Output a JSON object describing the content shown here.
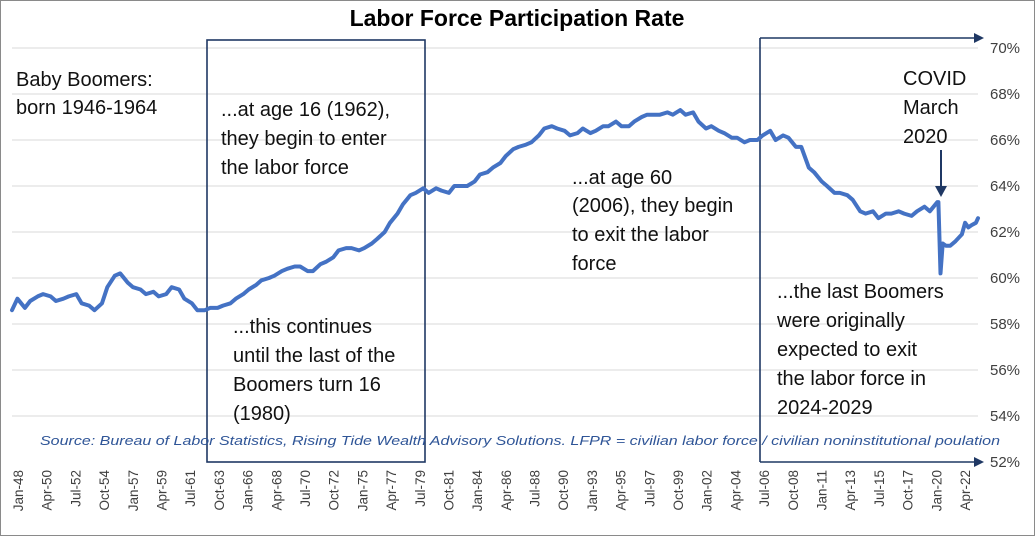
{
  "chart_data": {
    "type": "line",
    "title": "Labor Force Participation Rate",
    "ylim": [
      52,
      70
    ],
    "y_ticks": [
      "52%",
      "54%",
      "56%",
      "58%",
      "60%",
      "62%",
      "64%",
      "66%",
      "68%",
      "70%"
    ],
    "x_range": [
      "1948-01",
      "2023-03"
    ],
    "x_ticks": [
      "Jan-48",
      "Apr-50",
      "Jul-52",
      "Oct-54",
      "Jan-57",
      "Apr-59",
      "Jul-61",
      "Oct-63",
      "Jan-66",
      "Apr-68",
      "Jul-70",
      "Oct-72",
      "Jan-75",
      "Apr-77",
      "Jul-79",
      "Oct-81",
      "Jan-84",
      "Apr-86",
      "Jul-88",
      "Oct-90",
      "Jan-93",
      "Apr-95",
      "Jul-97",
      "Oct-99",
      "Jan-02",
      "Apr-04",
      "Jul-06",
      "Oct-08",
      "Jan-11",
      "Apr-13",
      "Jul-15",
      "Oct-17",
      "Jan-20",
      "Apr-22"
    ],
    "grid": true,
    "series": [
      {
        "color": "#4472c4",
        "points": [
          [
            "1948-01",
            58.6
          ],
          [
            "1948-06",
            59.1
          ],
          [
            "1949-01",
            58.7
          ],
          [
            "1949-06",
            59.0
          ],
          [
            "1950-01",
            59.2
          ],
          [
            "1950-06",
            59.3
          ],
          [
            "1951-01",
            59.2
          ],
          [
            "1951-06",
            59.0
          ],
          [
            "1952-01",
            59.1
          ],
          [
            "1952-06",
            59.2
          ],
          [
            "1953-01",
            59.3
          ],
          [
            "1953-06",
            58.9
          ],
          [
            "1954-01",
            58.8
          ],
          [
            "1954-06",
            58.6
          ],
          [
            "1955-01",
            58.9
          ],
          [
            "1955-06",
            59.6
          ],
          [
            "1956-01",
            60.1
          ],
          [
            "1956-06",
            60.2
          ],
          [
            "1957-01",
            59.8
          ],
          [
            "1957-06",
            59.6
          ],
          [
            "1958-01",
            59.5
          ],
          [
            "1958-06",
            59.3
          ],
          [
            "1959-01",
            59.4
          ],
          [
            "1959-06",
            59.2
          ],
          [
            "1960-01",
            59.3
          ],
          [
            "1960-06",
            59.6
          ],
          [
            "1961-01",
            59.5
          ],
          [
            "1961-06",
            59.1
          ],
          [
            "1962-01",
            58.9
          ],
          [
            "1962-06",
            58.6
          ],
          [
            "1963-01",
            58.6
          ],
          [
            "1963-06",
            58.7
          ],
          [
            "1964-01",
            58.7
          ],
          [
            "1964-06",
            58.8
          ],
          [
            "1965-01",
            58.9
          ],
          [
            "1965-06",
            59.1
          ],
          [
            "1966-01",
            59.3
          ],
          [
            "1966-06",
            59.5
          ],
          [
            "1967-01",
            59.7
          ],
          [
            "1967-06",
            59.9
          ],
          [
            "1968-01",
            60.0
          ],
          [
            "1968-06",
            60.1
          ],
          [
            "1969-01",
            60.3
          ],
          [
            "1969-06",
            60.4
          ],
          [
            "1970-01",
            60.5
          ],
          [
            "1970-06",
            60.5
          ],
          [
            "1971-01",
            60.3
          ],
          [
            "1971-06",
            60.3
          ],
          [
            "1972-01",
            60.6
          ],
          [
            "1972-06",
            60.7
          ],
          [
            "1973-01",
            60.9
          ],
          [
            "1973-06",
            61.2
          ],
          [
            "1974-01",
            61.3
          ],
          [
            "1974-06",
            61.3
          ],
          [
            "1975-01",
            61.2
          ],
          [
            "1975-06",
            61.3
          ],
          [
            "1976-01",
            61.5
          ],
          [
            "1976-06",
            61.7
          ],
          [
            "1977-01",
            62.0
          ],
          [
            "1977-06",
            62.4
          ],
          [
            "1978-01",
            62.8
          ],
          [
            "1978-06",
            63.2
          ],
          [
            "1979-01",
            63.6
          ],
          [
            "1979-06",
            63.7
          ],
          [
            "1980-01",
            63.9
          ],
          [
            "1980-06",
            63.7
          ],
          [
            "1981-01",
            63.9
          ],
          [
            "1981-06",
            63.8
          ],
          [
            "1982-01",
            63.7
          ],
          [
            "1982-06",
            64.0
          ],
          [
            "1983-01",
            64.0
          ],
          [
            "1983-06",
            64.0
          ],
          [
            "1984-01",
            64.2
          ],
          [
            "1984-06",
            64.5
          ],
          [
            "1985-01",
            64.6
          ],
          [
            "1985-06",
            64.8
          ],
          [
            "1986-01",
            65.0
          ],
          [
            "1986-06",
            65.3
          ],
          [
            "1987-01",
            65.6
          ],
          [
            "1987-06",
            65.7
          ],
          [
            "1988-01",
            65.8
          ],
          [
            "1988-06",
            65.9
          ],
          [
            "1989-01",
            66.2
          ],
          [
            "1989-06",
            66.5
          ],
          [
            "1990-01",
            66.6
          ],
          [
            "1990-06",
            66.5
          ],
          [
            "1991-01",
            66.4
          ],
          [
            "1991-06",
            66.2
          ],
          [
            "1992-01",
            66.3
          ],
          [
            "1992-06",
            66.5
          ],
          [
            "1993-01",
            66.3
          ],
          [
            "1993-06",
            66.4
          ],
          [
            "1994-01",
            66.6
          ],
          [
            "1994-06",
            66.6
          ],
          [
            "1995-01",
            66.8
          ],
          [
            "1995-06",
            66.6
          ],
          [
            "1996-01",
            66.6
          ],
          [
            "1996-06",
            66.8
          ],
          [
            "1997-01",
            67.0
          ],
          [
            "1997-06",
            67.1
          ],
          [
            "1998-01",
            67.1
          ],
          [
            "1998-06",
            67.1
          ],
          [
            "1999-01",
            67.2
          ],
          [
            "1999-06",
            67.1
          ],
          [
            "2000-01",
            67.3
          ],
          [
            "2000-06",
            67.1
          ],
          [
            "2001-01",
            67.2
          ],
          [
            "2001-06",
            66.8
          ],
          [
            "2002-01",
            66.5
          ],
          [
            "2002-06",
            66.6
          ],
          [
            "2003-01",
            66.4
          ],
          [
            "2003-06",
            66.3
          ],
          [
            "2004-01",
            66.1
          ],
          [
            "2004-06",
            66.1
          ],
          [
            "2005-01",
            65.9
          ],
          [
            "2005-06",
            66.0
          ],
          [
            "2006-01",
            66.0
          ],
          [
            "2006-06",
            66.2
          ],
          [
            "2007-01",
            66.4
          ],
          [
            "2007-06",
            66.0
          ],
          [
            "2008-01",
            66.2
          ],
          [
            "2008-06",
            66.1
          ],
          [
            "2009-01",
            65.7
          ],
          [
            "2009-06",
            65.7
          ],
          [
            "2010-01",
            64.8
          ],
          [
            "2010-06",
            64.6
          ],
          [
            "2011-01",
            64.2
          ],
          [
            "2011-06",
            64.0
          ],
          [
            "2012-01",
            63.7
          ],
          [
            "2012-06",
            63.7
          ],
          [
            "2013-01",
            63.6
          ],
          [
            "2013-06",
            63.4
          ],
          [
            "2014-01",
            62.9
          ],
          [
            "2014-06",
            62.8
          ],
          [
            "2015-01",
            62.9
          ],
          [
            "2015-06",
            62.6
          ],
          [
            "2016-01",
            62.8
          ],
          [
            "2016-06",
            62.8
          ],
          [
            "2017-01",
            62.9
          ],
          [
            "2017-06",
            62.8
          ],
          [
            "2018-01",
            62.7
          ],
          [
            "2018-06",
            62.9
          ],
          [
            "2019-01",
            63.1
          ],
          [
            "2019-06",
            62.9
          ],
          [
            "2020-01",
            63.3
          ],
          [
            "2020-02",
            63.3
          ],
          [
            "2020-04",
            60.2
          ],
          [
            "2020-06",
            61.5
          ],
          [
            "2020-09",
            61.4
          ],
          [
            "2021-01",
            61.4
          ],
          [
            "2021-06",
            61.6
          ],
          [
            "2021-12",
            61.9
          ],
          [
            "2022-03",
            62.4
          ],
          [
            "2022-06",
            62.2
          ],
          [
            "2022-09",
            62.3
          ],
          [
            "2023-01",
            62.4
          ],
          [
            "2023-03",
            62.6
          ]
        ]
      }
    ],
    "annotations": {
      "boomers": [
        "Baby Boomers:",
        "born 1946-1964"
      ],
      "age16": [
        "...at age 16 (1962),",
        "they begin to enter",
        "the labor force"
      ],
      "continues": [
        "...this continues",
        "until the last of the",
        "Boomers turn 16",
        "(1980)"
      ],
      "age60": [
        "...at age 60",
        "(2006), they begin",
        "to exit the labor",
        "force"
      ],
      "lastBoomers": [
        "...the last Boomers",
        "were originally",
        "expected to exit",
        "the labor force in",
        "2024-2029"
      ],
      "covid": [
        "COVID",
        "March",
        "2020"
      ]
    },
    "source": "Source: Bureau of Labor Statistics, Rising Tide Wealth Advisory Solutions. LFPR = civilian labor force / civilian noninstitutional poulation",
    "colors": {
      "line": "#4472c4",
      "box": "#1f3864",
      "source": "#2f5597",
      "grid": "#d9d9d9"
    }
  }
}
